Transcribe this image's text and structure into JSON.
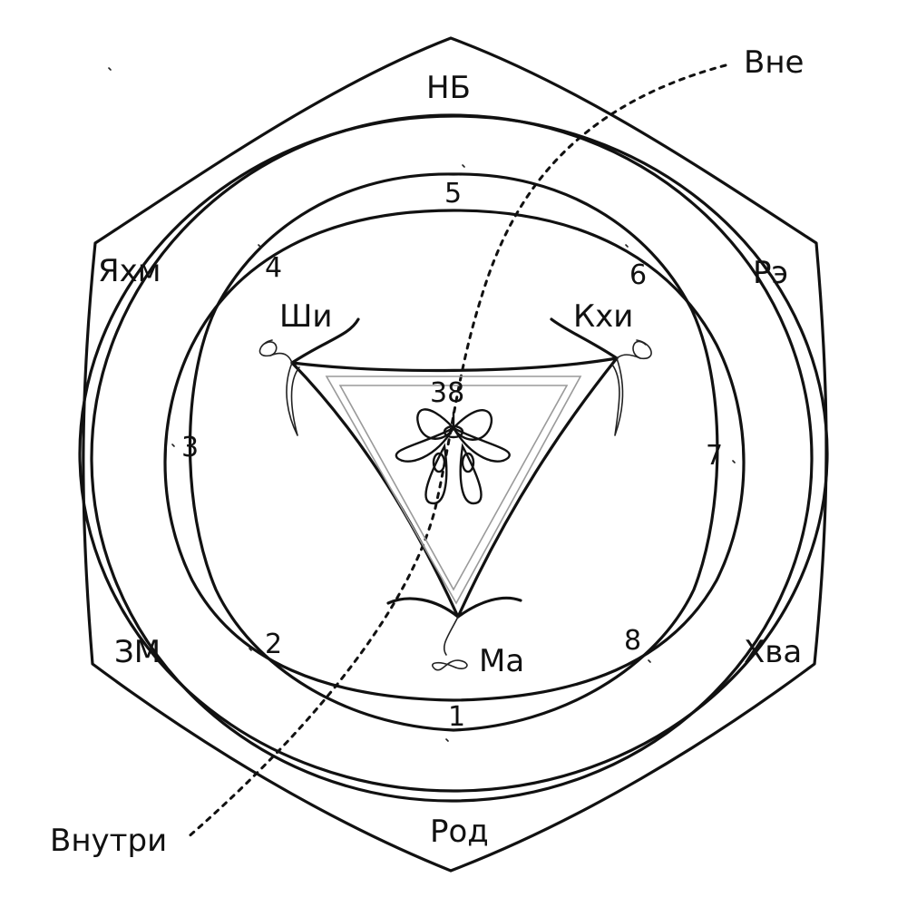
{
  "flow": {
    "outside": "Вне",
    "inside": "Внутри"
  },
  "outer_labels": {
    "top": "НБ",
    "top_right": "Рэ",
    "bottom_right": "Хва",
    "bottom": "Род",
    "bottom_left": "ЗМ",
    "top_left": "Яхм"
  },
  "ring_numbers": [
    "1",
    "2",
    "3",
    "4",
    "5",
    "6",
    "7",
    "8"
  ],
  "triangle_labels": {
    "left": "Ши",
    "right": "Кхи",
    "bottom": "Ма"
  },
  "center_number": "38"
}
